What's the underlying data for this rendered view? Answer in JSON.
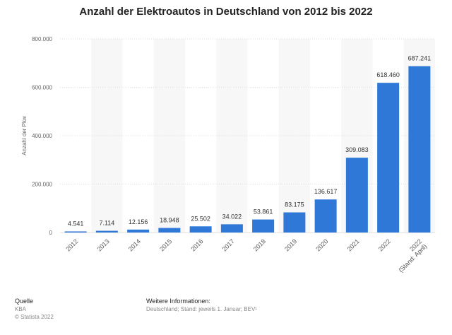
{
  "chart_data": {
    "type": "bar",
    "title": "Anzahl der Elektroautos in Deutschland von 2012 bis 2022",
    "xlabel": "",
    "ylabel": "Anzahl der Pkw",
    "categories": [
      "2012",
      "2013",
      "2014",
      "2015",
      "2016",
      "2017",
      "2018",
      "2019",
      "2020",
      "2021",
      "2022",
      "2022\n(Stand: April)"
    ],
    "values": [
      4541,
      7114,
      12156,
      18948,
      25502,
      34022,
      53861,
      83175,
      136617,
      309083,
      618460,
      687241
    ],
    "value_labels": [
      "4.541",
      "7.114",
      "12.156",
      "18.948",
      "25.502",
      "34.022",
      "53.861",
      "83.175",
      "136.617",
      "309.083",
      "618.460",
      "687.241"
    ],
    "yticks": [
      0,
      200000,
      400000,
      600000,
      800000
    ],
    "ytick_labels": [
      "0",
      "200.000",
      "400.000",
      "600.000",
      "800.000"
    ],
    "ylim": [
      0,
      800000
    ],
    "grid": true,
    "bar_color": "#2f78d8"
  },
  "footer": {
    "source_heading": "Quelle",
    "source_name": "KBA",
    "copyright": "© Statista 2022",
    "info_heading": "Weitere Informationen:",
    "info_text": "Deutschland; Stand: jeweils 1. Januar; BEV¹"
  }
}
